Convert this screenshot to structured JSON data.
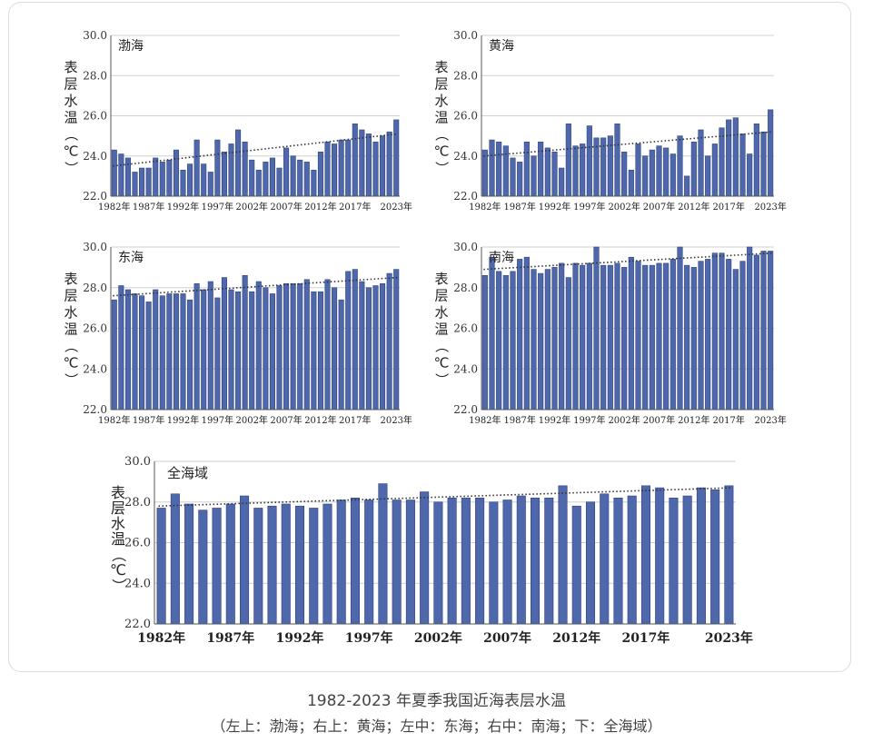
{
  "caption": {
    "title": "1982-2023 年夏季我国近海表层水温",
    "subtitle": "（左上：渤海；右上：黄海；左中：东海；右中：南海；下：全海域）"
  },
  "colors": {
    "bar": "#4f67ab",
    "bar_edge": "#2e427e",
    "axis": "#555555",
    "grid": "#d0d0d0",
    "trend": "#333333"
  },
  "chart_data": [
    {
      "type": "bar",
      "title": "渤海",
      "ylabel": "表层水温（℃）",
      "ylim": [
        22.0,
        30.0
      ],
      "yticks": [
        "22.0",
        "24.0",
        "26.0",
        "28.0",
        "30.0"
      ],
      "xticks": [
        "1982年",
        "1987年",
        "1992年",
        "1997年",
        "2002年",
        "2007年",
        "2012年",
        "2017年",
        "2023年"
      ],
      "x": [
        1982,
        1983,
        1984,
        1985,
        1986,
        1987,
        1988,
        1989,
        1990,
        1991,
        1992,
        1993,
        1994,
        1995,
        1996,
        1997,
        1998,
        1999,
        2000,
        2001,
        2002,
        2003,
        2004,
        2005,
        2006,
        2007,
        2008,
        2009,
        2010,
        2011,
        2012,
        2013,
        2014,
        2015,
        2016,
        2017,
        2018,
        2019,
        2020,
        2021,
        2022,
        2023
      ],
      "values": [
        24.3,
        24.1,
        23.9,
        23.2,
        23.4,
        23.4,
        23.9,
        23.7,
        23.8,
        24.3,
        23.3,
        23.6,
        24.8,
        23.6,
        23.2,
        24.8,
        24.2,
        24.6,
        25.3,
        24.7,
        23.8,
        23.3,
        23.7,
        23.9,
        23.4,
        24.4,
        24.0,
        23.8,
        23.7,
        23.3,
        24.2,
        24.7,
        24.6,
        24.8,
        24.8,
        25.6,
        25.3,
        25.1,
        24.7,
        25.0,
        25.2,
        25.8
      ],
      "trend": [
        23.5,
        25.1
      ]
    },
    {
      "type": "bar",
      "title": "黄海",
      "ylabel": "表层水温（℃）",
      "ylim": [
        22.0,
        30.0
      ],
      "yticks": [
        "22.0",
        "24.0",
        "26.0",
        "28.0",
        "30.0"
      ],
      "xticks": [
        "1982年",
        "1987年",
        "1992年",
        "1997年",
        "2002年",
        "2007年",
        "2012年",
        "2017年",
        "2023年"
      ],
      "x": [
        1982,
        1983,
        1984,
        1985,
        1986,
        1987,
        1988,
        1989,
        1990,
        1991,
        1992,
        1993,
        1994,
        1995,
        1996,
        1997,
        1998,
        1999,
        2000,
        2001,
        2002,
        2003,
        2004,
        2005,
        2006,
        2007,
        2008,
        2009,
        2010,
        2011,
        2012,
        2013,
        2014,
        2015,
        2016,
        2017,
        2018,
        2019,
        2020,
        2021,
        2022,
        2023
      ],
      "values": [
        24.3,
        24.8,
        24.7,
        24.5,
        23.9,
        23.7,
        24.7,
        24.0,
        24.7,
        24.4,
        24.2,
        23.4,
        25.6,
        24.5,
        24.6,
        25.5,
        24.9,
        24.9,
        25.0,
        25.6,
        24.2,
        23.3,
        24.6,
        24.0,
        24.3,
        24.5,
        24.4,
        24.1,
        25.0,
        23.0,
        24.7,
        25.3,
        24.0,
        24.6,
        25.4,
        25.8,
        25.9,
        25.1,
        24.1,
        25.6,
        25.2,
        26.3
      ],
      "trend": [
        24.0,
        25.2
      ]
    },
    {
      "type": "bar",
      "title": "东海",
      "ylabel": "表层水温（℃）",
      "ylim": [
        22.0,
        30.0
      ],
      "yticks": [
        "22.0",
        "24.0",
        "26.0",
        "28.0",
        "30.0"
      ],
      "xticks": [
        "1982年",
        "1987年",
        "1992年",
        "1997年",
        "2002年",
        "2007年",
        "2012年",
        "2017年",
        "2023年"
      ],
      "x": [
        1982,
        1983,
        1984,
        1985,
        1986,
        1987,
        1988,
        1989,
        1990,
        1991,
        1992,
        1993,
        1994,
        1995,
        1996,
        1997,
        1998,
        1999,
        2000,
        2001,
        2002,
        2003,
        2004,
        2005,
        2006,
        2007,
        2008,
        2009,
        2010,
        2011,
        2012,
        2013,
        2014,
        2015,
        2016,
        2017,
        2018,
        2019,
        2020,
        2021,
        2022,
        2023
      ],
      "values": [
        27.4,
        28.1,
        27.9,
        27.7,
        27.6,
        27.3,
        27.9,
        27.6,
        27.7,
        27.7,
        27.7,
        27.4,
        28.2,
        27.9,
        28.3,
        27.5,
        28.5,
        27.9,
        27.8,
        28.6,
        27.8,
        28.3,
        28.0,
        27.7,
        28.1,
        28.2,
        28.2,
        28.2,
        28.4,
        27.8,
        27.8,
        28.4,
        28.0,
        27.4,
        28.8,
        28.9,
        28.3,
        28.0,
        28.1,
        28.2,
        28.7,
        28.9
      ],
      "trend": [
        27.6,
        28.5
      ]
    },
    {
      "type": "bar",
      "title": "南海",
      "ylabel": "表层水温（℃）",
      "ylim": [
        22.0,
        30.0
      ],
      "yticks": [
        "22.0",
        "24.0",
        "26.0",
        "28.0",
        "30.0"
      ],
      "xticks": [
        "1982年",
        "1987年",
        "1992年",
        "1997年",
        "2002年",
        "2007年",
        "2012年",
        "2017年",
        "2023年"
      ],
      "x": [
        1982,
        1983,
        1984,
        1985,
        1986,
        1987,
        1988,
        1989,
        1990,
        1991,
        1992,
        1993,
        1994,
        1995,
        1996,
        1997,
        1998,
        1999,
        2000,
        2001,
        2002,
        2003,
        2004,
        2005,
        2006,
        2007,
        2008,
        2009,
        2010,
        2011,
        2012,
        2013,
        2014,
        2015,
        2016,
        2017,
        2018,
        2019,
        2020,
        2021,
        2022,
        2023
      ],
      "values": [
        28.6,
        29.5,
        28.8,
        28.6,
        28.8,
        29.4,
        29.5,
        28.9,
        28.7,
        28.9,
        29.0,
        29.2,
        28.5,
        29.2,
        29.1,
        29.2,
        30.0,
        29.1,
        29.1,
        29.2,
        29.0,
        29.5,
        29.3,
        29.1,
        29.1,
        29.2,
        29.2,
        29.4,
        30.0,
        29.1,
        29.0,
        29.3,
        29.4,
        29.7,
        29.7,
        29.4,
        28.9,
        29.3,
        30.0,
        29.6,
        29.8,
        29.8
      ],
      "trend": [
        28.9,
        29.7
      ]
    },
    {
      "type": "bar",
      "title": "全海域",
      "ylabel": "表层水温（℃）",
      "ylim": [
        22.0,
        30.0
      ],
      "yticks": [
        "22.0",
        "24.0",
        "26.0",
        "28.0",
        "30.0"
      ],
      "xticks": [
        "1982年",
        "1987年",
        "1992年",
        "1997年",
        "2002年",
        "2007年",
        "2012年",
        "2017年",
        "2023年"
      ],
      "x": [
        1982,
        1983,
        1984,
        1985,
        1986,
        1987,
        1988,
        1989,
        1990,
        1991,
        1992,
        1993,
        1994,
        1995,
        1996,
        1997,
        1998,
        1999,
        2000,
        2001,
        2002,
        2003,
        2004,
        2005,
        2006,
        2007,
        2008,
        2009,
        2010,
        2011,
        2012,
        2013,
        2014,
        2015,
        2016,
        2017,
        2018,
        2019,
        2020,
        2021,
        2022,
        2023
      ],
      "values": [
        27.7,
        28.4,
        27.9,
        27.6,
        27.7,
        27.9,
        28.3,
        27.7,
        27.8,
        27.9,
        27.8,
        27.7,
        27.9,
        28.1,
        28.2,
        28.1,
        28.9,
        28.1,
        28.1,
        28.5,
        28.0,
        28.2,
        28.2,
        28.2,
        28.0,
        28.1,
        28.3,
        28.2,
        28.2,
        28.8,
        27.8,
        28.0,
        28.4,
        28.2,
        28.3,
        28.8,
        28.7,
        28.2,
        28.3,
        28.7,
        28.6,
        28.8
      ],
      "trend": [
        27.8,
        28.7
      ]
    }
  ]
}
